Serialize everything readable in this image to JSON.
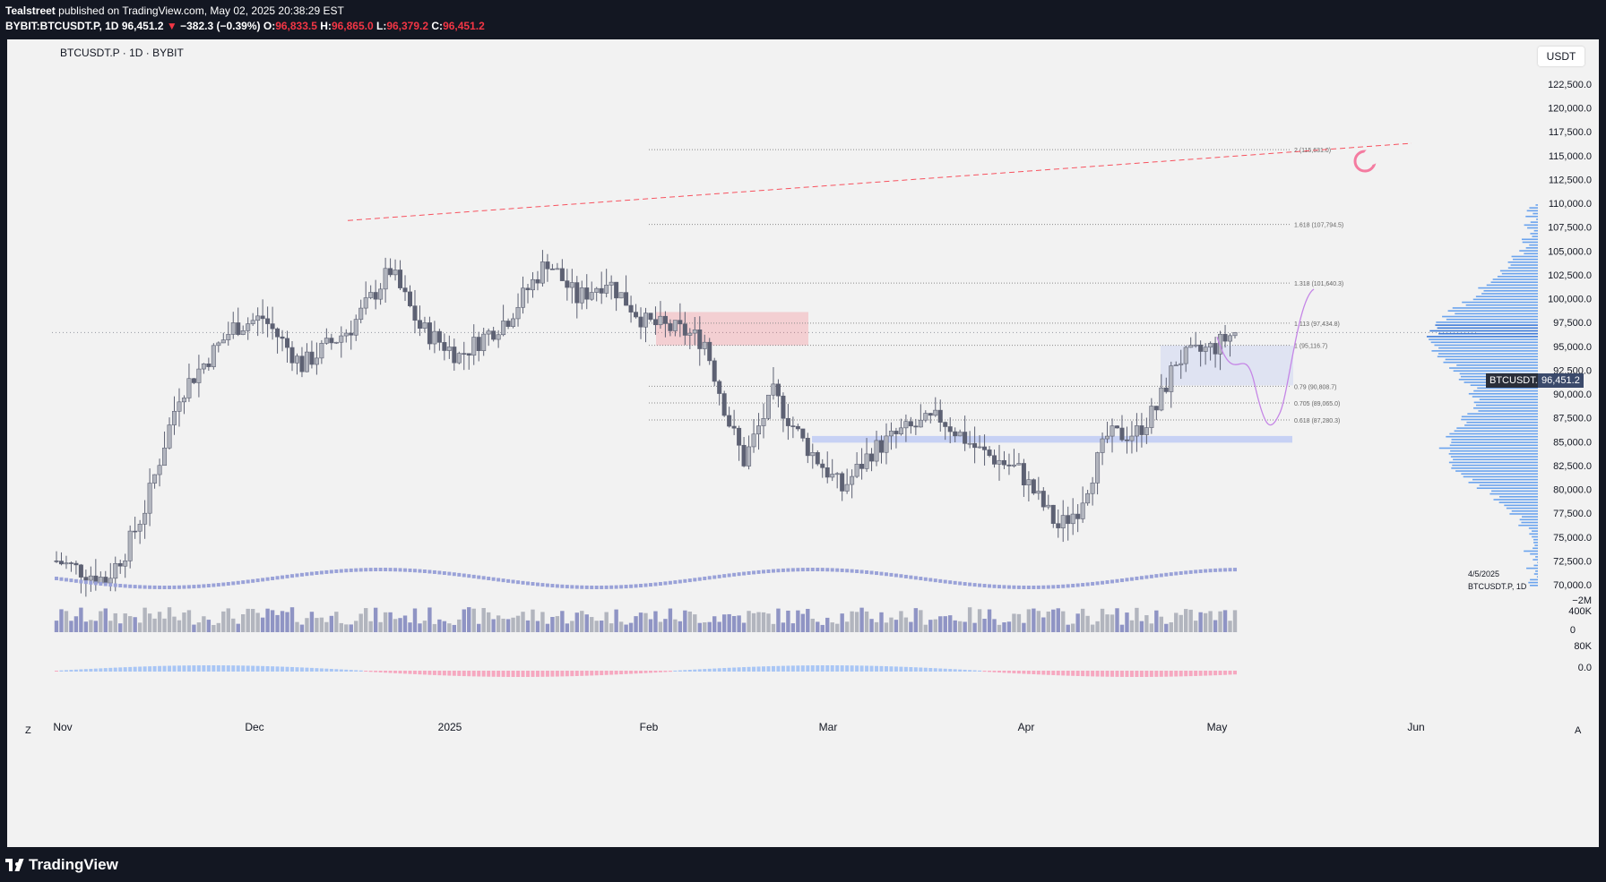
{
  "header": {
    "author": "Tealstreet",
    "published_text": "published on TradingView.com, May 02, 2025 20:38:29 EST",
    "symbol_full": "BYBIT:BTCUSDT.P, 1D",
    "last": "96,451.2",
    "change": "−382.3 (−0.39%)",
    "o_label": "O:",
    "o_value": "96,833.5",
    "h_label": "H:",
    "h_value": "96,865.0",
    "l_label": "L:",
    "l_value": "96,379.2",
    "c_label": "C:",
    "c_value": "96,451.2"
  },
  "chart": {
    "legend_symbol": "BTCUSDT.P · 1D · BYBIT",
    "currency": "USDT",
    "price_ticks": [
      "122,500.0",
      "120,000.0",
      "117,500.0",
      "115,000.0",
      "112,500.0",
      "110,000.0",
      "107,500.0",
      "105,000.0",
      "102,500.0",
      "100,000.0",
      "97,500.0",
      "95,000.0",
      "92,500.0",
      "90,000.0",
      "87,500.0",
      "85,000.0",
      "82,500.0",
      "80,000.0",
      "77,500.0",
      "75,000.0",
      "72,500.0",
      "70,000.0"
    ],
    "volume_ticks": [
      "400K",
      "0"
    ],
    "osc_ticks": [
      "−2M",
      "80K",
      "0.0"
    ],
    "time_labels": [
      "Nov",
      "Dec",
      "2025",
      "Feb",
      "Mar",
      "Apr",
      "May",
      "Jun"
    ],
    "fib_labels": [
      "2 (115,631.0)",
      "1.618 (107,794.5)",
      "1.318 (101,640.3)",
      "1.113 (97,434.8)",
      "1 (95,116.7)",
      "0.79 (90,808.7)",
      "0.705 (89,065.0)",
      "0.618 (87,280.3)"
    ],
    "symbol_tag": "BTCUSDT.P",
    "price_tag": "96,451.2",
    "date_note": "4/5/2025",
    "date_note_sym": "BTCUSDT.P, 1D",
    "corner_left": "Z",
    "corner_right": "A",
    "colors": {
      "up": "#b2b5be",
      "down": "#5d6173",
      "accent_fib": "#8a8a8a",
      "trend": "#f7525f",
      "zone_red": "#f7525f",
      "zone_blue": "#5b7cfa"
    }
  },
  "footer": {
    "brand": "TradingView"
  }
}
